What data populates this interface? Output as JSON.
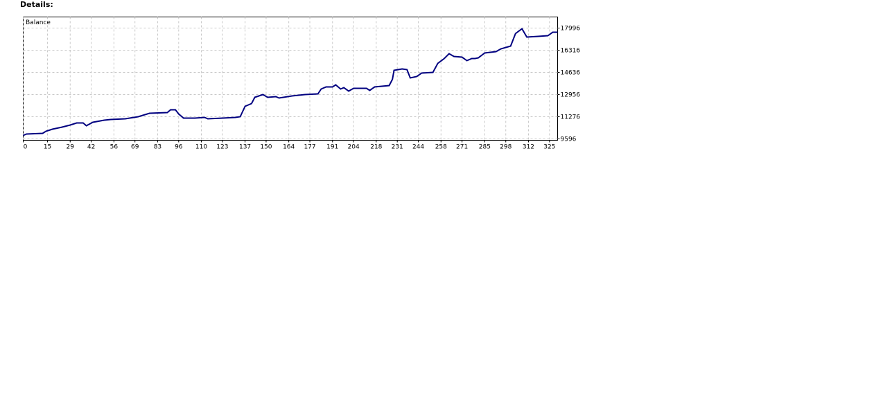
{
  "header": {
    "title": "Details:"
  },
  "chart_data": {
    "type": "line",
    "label": "Balance",
    "grid": true,
    "xlim": [
      0,
      330
    ],
    "ylim": [
      9491,
      18836
    ],
    "xticks": [
      0,
      15,
      29,
      42,
      56,
      69,
      83,
      96,
      110,
      123,
      137,
      150,
      164,
      177,
      191,
      204,
      218,
      231,
      244,
      258,
      271,
      285,
      298,
      312,
      325
    ],
    "yticks": [
      9596,
      11276,
      12956,
      14636,
      16316,
      17996
    ],
    "x": [
      0,
      2,
      12,
      14,
      18,
      24,
      29,
      33,
      37,
      39,
      43,
      50,
      54,
      63,
      71,
      78,
      89,
      91,
      94,
      96,
      99,
      106,
      112,
      114,
      123,
      131,
      134,
      137,
      141,
      143,
      148,
      151,
      156,
      158,
      166,
      174,
      182,
      184,
      187,
      191,
      193,
      196,
      198,
      201,
      204,
      212,
      214,
      217,
      226,
      228,
      229,
      234,
      237,
      239,
      243,
      246,
      253,
      256,
      260,
      263,
      266,
      271,
      274,
      277,
      279,
      281,
      285,
      292,
      295,
      301,
      304,
      308,
      311,
      318,
      324,
      327,
      330
    ],
    "series": [
      {
        "color": "#000080",
        "values": [
          9858,
          9963,
          10016,
          10173,
          10331,
          10488,
          10646,
          10803,
          10803,
          10593,
          10856,
          11013,
          11066,
          11118,
          11276,
          11538,
          11591,
          11801,
          11801,
          11486,
          11171,
          11171,
          11223,
          11118,
          11171,
          11223,
          11276,
          12063,
          12273,
          12746,
          12956,
          12746,
          12798,
          12693,
          12851,
          12956,
          13008,
          13376,
          13533,
          13533,
          13691,
          13376,
          13481,
          13218,
          13428,
          13428,
          13271,
          13533,
          13638,
          14111,
          14793,
          14898,
          14846,
          14216,
          14321,
          14583,
          14636,
          15318,
          15686,
          16053,
          15843,
          15791,
          15528,
          15686,
          15686,
          15738,
          16106,
          16211,
          16421,
          16631,
          17576,
          17943,
          17313,
          17366,
          17418,
          17681,
          17681
        ]
      }
    ]
  }
}
